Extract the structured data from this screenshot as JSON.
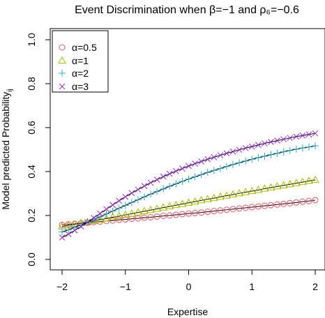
{
  "chart_data": {
    "type": "scatter",
    "title": "Event Discrimination when β=−1 and ρ₆=−0.6",
    "xlabel": "Expertise",
    "ylabel": "Model predicted Probability",
    "ylabel_sub": "ij",
    "xlim": [
      -2,
      2
    ],
    "ylim": [
      0,
      1
    ],
    "xticks": [
      -2,
      -1,
      0,
      1,
      2
    ],
    "xtick_labels": [
      "−2",
      "−1",
      "0",
      "1",
      "2"
    ],
    "yticks": [
      0.0,
      0.2,
      0.4,
      0.6,
      0.8,
      1.0
    ],
    "ytick_labels": [
      "0.0",
      "0.2",
      "0.4",
      "0.6",
      "0.8",
      "1.0"
    ],
    "legend_position": "top-left",
    "grid": false,
    "x": [
      -2.0,
      -1.9,
      -1.8,
      -1.7,
      -1.6,
      -1.5,
      -1.4,
      -1.3,
      -1.2,
      -1.1,
      -1.0,
      -0.9,
      -0.8,
      -0.7,
      -0.6,
      -0.5,
      -0.4,
      -0.3,
      -0.2,
      -0.1,
      0.0,
      0.1,
      0.2,
      0.3,
      0.4,
      0.5,
      0.6,
      0.7,
      0.8,
      0.9,
      1.0,
      1.1,
      1.2,
      1.3,
      1.4,
      1.5,
      1.6,
      1.7,
      1.8,
      1.9,
      2.0
    ],
    "series": [
      {
        "name": "α=0.5",
        "marker": "circle",
        "color": "#DF536B",
        "values": [
          0.157,
          0.16,
          0.162,
          0.165,
          0.167,
          0.17,
          0.172,
          0.175,
          0.177,
          0.18,
          0.182,
          0.185,
          0.187,
          0.19,
          0.192,
          0.195,
          0.198,
          0.2,
          0.203,
          0.206,
          0.209,
          0.211,
          0.214,
          0.217,
          0.22,
          0.223,
          0.226,
          0.229,
          0.232,
          0.235,
          0.238,
          0.241,
          0.244,
          0.247,
          0.25,
          0.253,
          0.256,
          0.259,
          0.263,
          0.266,
          0.27
        ]
      },
      {
        "name": "α=1",
        "marker": "triangle",
        "color": "#A8B800",
        "values": [
          0.15,
          0.155,
          0.16,
          0.165,
          0.17,
          0.175,
          0.181,
          0.186,
          0.192,
          0.197,
          0.203,
          0.208,
          0.214,
          0.219,
          0.225,
          0.23,
          0.236,
          0.241,
          0.247,
          0.252,
          0.258,
          0.263,
          0.269,
          0.274,
          0.279,
          0.285,
          0.29,
          0.295,
          0.301,
          0.306,
          0.311,
          0.316,
          0.322,
          0.327,
          0.332,
          0.337,
          0.342,
          0.347,
          0.352,
          0.357,
          0.362
        ]
      },
      {
        "name": "α=2",
        "marker": "plus",
        "color": "#28A7C0",
        "values": [
          0.125,
          0.135,
          0.146,
          0.158,
          0.17,
          0.182,
          0.194,
          0.207,
          0.22,
          0.233,
          0.246,
          0.259,
          0.272,
          0.285,
          0.297,
          0.309,
          0.321,
          0.333,
          0.344,
          0.355,
          0.366,
          0.376,
          0.386,
          0.396,
          0.405,
          0.414,
          0.423,
          0.432,
          0.44,
          0.448,
          0.456,
          0.463,
          0.47,
          0.477,
          0.483,
          0.49,
          0.496,
          0.502,
          0.507,
          0.512,
          0.517
        ]
      },
      {
        "name": "α=3",
        "marker": "cross",
        "color": "#9A2BC8",
        "values": [
          0.1,
          0.115,
          0.132,
          0.15,
          0.169,
          0.189,
          0.209,
          0.229,
          0.248,
          0.267,
          0.285,
          0.302,
          0.318,
          0.334,
          0.349,
          0.363,
          0.377,
          0.39,
          0.402,
          0.414,
          0.425,
          0.436,
          0.446,
          0.456,
          0.465,
          0.474,
          0.483,
          0.491,
          0.499,
          0.507,
          0.514,
          0.521,
          0.528,
          0.535,
          0.541,
          0.547,
          0.553,
          0.559,
          0.564,
          0.569,
          0.574
        ]
      }
    ]
  }
}
